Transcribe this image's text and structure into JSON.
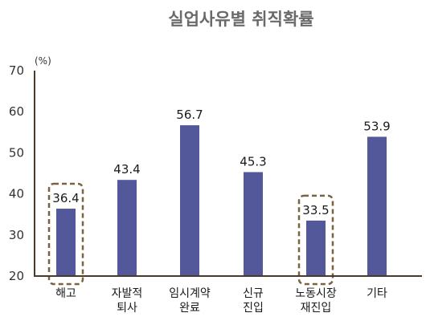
{
  "chart_data": {
    "type": "bar",
    "title": "실업사유별 취직확률",
    "unit": "(%)",
    "categories": [
      [
        "해고"
      ],
      [
        "자발적",
        "퇴사"
      ],
      [
        "임시계약",
        "완료"
      ],
      [
        "신규",
        "진입"
      ],
      [
        "노동시장",
        "재진입"
      ],
      [
        "기타"
      ]
    ],
    "values": [
      36.4,
      43.4,
      56.7,
      45.3,
      33.5,
      53.9
    ],
    "value_labels": [
      "36.4",
      "43.4",
      "56.7",
      "45.3",
      "33.5",
      "53.9"
    ],
    "ylim": [
      20,
      70
    ],
    "yticks": [
      20,
      30,
      40,
      50,
      60,
      70
    ],
    "highlighted": [
      0,
      4
    ],
    "grid": false,
    "colors": {
      "bar": "#52589a",
      "axis": "#4a3a2a",
      "highlight": "#7b6342",
      "title": "#6a6a6a"
    }
  }
}
